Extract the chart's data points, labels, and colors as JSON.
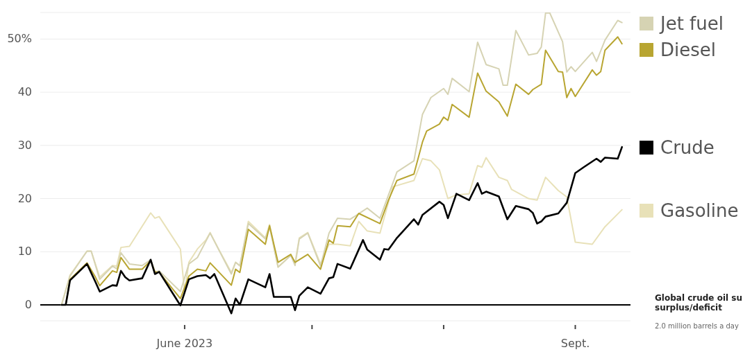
{
  "chart_data": {
    "type": "line",
    "xlim": [
      "2023-04-28",
      "2023-09-14"
    ],
    "ylim": [
      -3,
      55
    ],
    "yticks": [
      0,
      10,
      20,
      30,
      40,
      {
        "value": 50,
        "label": "50%"
      }
    ],
    "xticks": [
      {
        "value": "2023-06-01",
        "label": "June 2023"
      },
      {
        "value": "2023-07-01",
        "label": null
      },
      {
        "value": "2023-08-01",
        "label": null
      },
      {
        "value": "2023-09-01",
        "label": "Sept."
      }
    ],
    "grid": "y",
    "legend": "right",
    "line_style": "solid",
    "ref_lines": [
      {
        "axis": "y",
        "value": 0,
        "color": "#000000"
      }
    ],
    "annotations": [
      "Global crude oil su",
      "surplus/deficit",
      "2.0 million barrels a day"
    ],
    "series": [
      {
        "name": "Gasoline",
        "color": "#e8e1b8",
        "x": [
          "2023-05-03",
          "2023-05-05",
          "2023-05-09",
          "2023-05-10",
          "2023-05-12",
          "2023-05-15",
          "2023-05-16",
          "2023-05-17",
          "2023-05-19",
          "2023-05-24",
          "2023-05-25",
          "2023-05-26",
          "2023-05-31",
          "2023-06-01",
          "2023-06-02",
          "2023-06-04",
          "2023-06-06",
          "2023-06-07",
          "2023-06-09",
          "2023-06-12",
          "2023-06-13",
          "2023-06-14",
          "2023-06-16",
          "2023-06-20",
          "2023-06-21",
          "2023-06-23",
          "2023-06-26",
          "2023-06-27",
          "2023-06-28",
          "2023-06-30",
          "2023-07-03",
          "2023-07-05",
          "2023-07-07",
          "2023-07-10",
          "2023-07-12",
          "2023-07-14",
          "2023-07-17",
          "2023-07-20",
          "2023-07-25",
          "2023-07-27",
          "2023-07-29",
          "2023-07-31",
          "2023-08-02",
          "2023-08-04",
          "2023-08-07",
          "2023-08-09",
          "2023-08-10",
          "2023-08-11",
          "2023-08-14",
          "2023-08-16",
          "2023-08-17",
          "2023-08-21",
          "2023-08-23",
          "2023-08-25",
          "2023-08-28",
          "2023-08-30",
          "2023-09-01",
          "2023-09-05",
          "2023-09-08",
          "2023-09-12"
        ],
        "values": [
          0,
          5.6,
          10.1,
          10.1,
          5.2,
          7.4,
          7.3,
          10.8,
          11,
          17.3,
          16.3,
          16.6,
          10.5,
          2.4,
          8,
          10.5,
          12.2,
          13.6,
          10.5,
          6.1,
          8,
          7.3,
          15.7,
          12.6,
          15.1,
          7.1,
          9.3,
          7.9,
          12.6,
          13.6,
          7.7,
          11.4,
          11.4,
          11.1,
          15.7,
          13.9,
          13.5,
          22.2,
          23.4,
          27.5,
          27.1,
          25.4,
          20,
          20.7,
          20.9,
          26.2,
          25.9,
          27.7,
          24,
          23.4,
          21.7,
          20,
          19.7,
          24,
          21.5,
          20.3,
          11.8,
          11.4,
          14.7,
          17.9
        ]
      },
      {
        "name": "Jet fuel",
        "color": "#d6d3b3",
        "x": [
          "2023-05-03",
          "2023-05-05",
          "2023-05-09",
          "2023-05-10",
          "2023-05-12",
          "2023-05-15",
          "2023-05-16",
          "2023-05-17",
          "2023-05-19",
          "2023-05-22",
          "2023-05-24",
          "2023-05-25",
          "2023-05-26",
          "2023-05-31",
          "2023-06-02",
          "2023-06-04",
          "2023-06-07",
          "2023-06-12",
          "2023-06-13",
          "2023-06-14",
          "2023-06-16",
          "2023-06-20",
          "2023-06-21",
          "2023-06-23",
          "2023-06-26",
          "2023-06-27",
          "2023-06-28",
          "2023-06-30",
          "2023-07-03",
          "2023-07-05",
          "2023-07-07",
          "2023-07-10",
          "2023-07-14",
          "2023-07-17",
          "2023-07-21",
          "2023-07-25",
          "2023-07-27",
          "2023-07-29",
          "2023-08-01",
          "2023-08-02",
          "2023-08-03",
          "2023-08-07",
          "2023-08-09",
          "2023-08-11",
          "2023-08-14",
          "2023-08-15",
          "2023-08-16",
          "2023-08-18",
          "2023-08-21",
          "2023-08-23",
          "2023-08-24",
          "2023-08-25",
          "2023-08-26",
          "2023-08-29",
          "2023-08-30",
          "2023-08-31",
          "2023-09-01",
          "2023-09-05",
          "2023-09-06",
          "2023-09-08",
          "2023-09-11",
          "2023-09-12"
        ],
        "values": [
          0,
          5.4,
          10.1,
          10.1,
          4.8,
          7.3,
          6.8,
          9.8,
          7.7,
          7.4,
          8.5,
          6.2,
          6.4,
          2.5,
          7.7,
          8.9,
          13.5,
          5.8,
          8,
          7.4,
          15.3,
          12.4,
          14.7,
          7.1,
          9.3,
          7.4,
          12.4,
          13.5,
          7.3,
          13.5,
          16.3,
          16.1,
          18.2,
          16.3,
          25,
          27.1,
          35.8,
          39,
          40.7,
          39.6,
          42.6,
          40.1,
          49.4,
          45.2,
          44.4,
          41.3,
          41.3,
          51.6,
          47,
          47.3,
          48.5,
          54.9,
          54.9,
          49.5,
          43.8,
          44.8,
          43.9,
          47.5,
          45.8,
          49.8,
          53.5,
          53.1
        ]
      },
      {
        "name": "Diesel",
        "color": "#b8a531",
        "x": [
          "2023-05-03",
          "2023-05-04",
          "2023-05-05",
          "2023-05-09",
          "2023-05-11",
          "2023-05-12",
          "2023-05-15",
          "2023-05-16",
          "2023-05-17",
          "2023-05-19",
          "2023-05-22",
          "2023-05-24",
          "2023-05-25",
          "2023-05-26",
          "2023-05-31",
          "2023-06-02",
          "2023-06-04",
          "2023-06-06",
          "2023-06-07",
          "2023-06-12",
          "2023-06-13",
          "2023-06-14",
          "2023-06-16",
          "2023-06-20",
          "2023-06-21",
          "2023-06-23",
          "2023-06-26",
          "2023-06-27",
          "2023-06-30",
          "2023-07-03",
          "2023-07-05",
          "2023-07-06",
          "2023-07-07",
          "2023-07-10",
          "2023-07-12",
          "2023-07-17",
          "2023-07-19",
          "2023-07-21",
          "2023-07-25",
          "2023-07-27",
          "2023-07-28",
          "2023-07-31",
          "2023-08-01",
          "2023-08-02",
          "2023-08-03",
          "2023-08-07",
          "2023-08-09",
          "2023-08-11",
          "2023-08-14",
          "2023-08-16",
          "2023-08-18",
          "2023-08-21",
          "2023-08-22",
          "2023-08-24",
          "2023-08-25",
          "2023-08-28",
          "2023-08-29",
          "2023-08-30",
          "2023-08-31",
          "2023-09-01",
          "2023-09-05",
          "2023-09-06",
          "2023-09-07",
          "2023-09-08",
          "2023-09-11",
          "2023-09-12"
        ],
        "values": [
          0,
          0,
          4.8,
          7.9,
          5.2,
          3.6,
          6.4,
          6.1,
          8.9,
          6.7,
          6.7,
          8.3,
          6.2,
          6.1,
          1.2,
          5.4,
          6.7,
          6.4,
          7.9,
          3.7,
          6.7,
          6.1,
          14.2,
          11.4,
          14.9,
          8,
          9.5,
          8,
          9.5,
          6.7,
          12.2,
          11.6,
          14.9,
          14.7,
          17.2,
          15.3,
          19.7,
          23.4,
          24.6,
          30.6,
          32.7,
          34,
          35.3,
          34.7,
          37.7,
          35.3,
          43.6,
          40.2,
          38.2,
          35.5,
          41.5,
          39.6,
          40.5,
          41.5,
          47.9,
          43.9,
          43.8,
          39,
          40.7,
          39.2,
          44.2,
          43.2,
          43.9,
          47.9,
          50.4,
          49.1
        ]
      },
      {
        "name": "Crude",
        "color": "#000000",
        "x": [
          "2023-05-03",
          "2023-05-04",
          "2023-05-05",
          "2023-05-09",
          "2023-05-11",
          "2023-05-12",
          "2023-05-15",
          "2023-05-16",
          "2023-05-17",
          "2023-05-18",
          "2023-05-19",
          "2023-05-22",
          "2023-05-24",
          "2023-05-25",
          "2023-05-26",
          "2023-05-31",
          "2023-06-02",
          "2023-06-04",
          "2023-06-06",
          "2023-06-07",
          "2023-06-08",
          "2023-06-12",
          "2023-06-13",
          "2023-06-14",
          "2023-06-16",
          "2023-06-20",
          "2023-06-21",
          "2023-06-22",
          "2023-06-26",
          "2023-06-27",
          "2023-06-28",
          "2023-06-30",
          "2023-07-03",
          "2023-07-05",
          "2023-07-06",
          "2023-07-07",
          "2023-07-10",
          "2023-07-13",
          "2023-07-14",
          "2023-07-17",
          "2023-07-18",
          "2023-07-19",
          "2023-07-21",
          "2023-07-25",
          "2023-07-26",
          "2023-07-27",
          "2023-07-31",
          "2023-08-01",
          "2023-08-02",
          "2023-08-04",
          "2023-08-07",
          "2023-08-09",
          "2023-08-10",
          "2023-08-11",
          "2023-08-14",
          "2023-08-16",
          "2023-08-18",
          "2023-08-21",
          "2023-08-22",
          "2023-08-23",
          "2023-08-24",
          "2023-08-25",
          "2023-08-28",
          "2023-08-30",
          "2023-09-01",
          "2023-09-03",
          "2023-09-06",
          "2023-09-07",
          "2023-09-08",
          "2023-09-11",
          "2023-09-12"
        ],
        "values": [
          0,
          0,
          4.6,
          7.7,
          4.3,
          2.5,
          3.7,
          3.6,
          6.4,
          5.2,
          4.6,
          5,
          8.5,
          5.8,
          6.2,
          -0.1,
          4.8,
          5.4,
          5.6,
          5,
          5.8,
          -1.6,
          1.2,
          0,
          4.8,
          3.3,
          5.8,
          1.5,
          1.5,
          -1,
          1.7,
          3.3,
          2.1,
          5,
          5.2,
          7.7,
          6.8,
          12.2,
          10.4,
          8.5,
          10.5,
          10.4,
          12.6,
          16.1,
          15.1,
          16.9,
          19.4,
          18.8,
          16.3,
          20.9,
          19.7,
          22.9,
          20.9,
          21.3,
          20.4,
          16.1,
          18.6,
          18,
          17.3,
          15.3,
          15.7,
          16.6,
          17.2,
          19.2,
          24.8,
          25.9,
          27.5,
          26.9,
          27.7,
          27.5,
          29.7
        ]
      }
    ]
  }
}
